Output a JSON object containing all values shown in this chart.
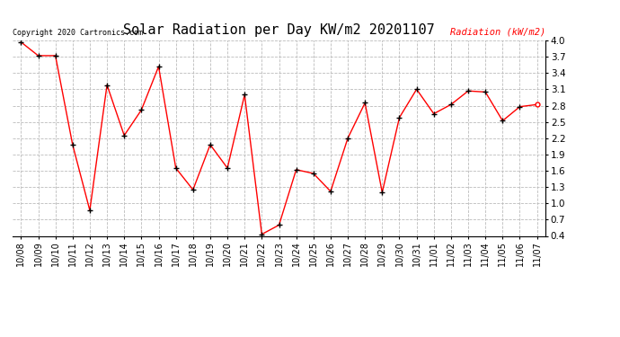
{
  "title": "Solar Radiation per Day KW/m2 20201107",
  "copyright": "Copyright 2020 Cartronics.com",
  "legend_label": "Radiation (kW/m2)",
  "dates": [
    "10/08",
    "10/09",
    "10/10",
    "10/11",
    "10/12",
    "10/13",
    "10/14",
    "10/15",
    "10/16",
    "10/17",
    "10/18",
    "10/19",
    "10/20",
    "10/21",
    "10/22",
    "10/23",
    "10/24",
    "10/25",
    "10/26",
    "10/27",
    "10/28",
    "10/29",
    "10/30",
    "10/31",
    "11/01",
    "11/02",
    "11/03",
    "11/04",
    "11/05",
    "11/06",
    "11/07"
  ],
  "values": [
    3.97,
    3.72,
    3.72,
    2.08,
    0.87,
    3.18,
    2.25,
    2.72,
    3.52,
    1.65,
    1.25,
    2.08,
    1.65,
    3.0,
    0.43,
    0.6,
    1.62,
    1.55,
    1.22,
    2.2,
    2.85,
    1.2,
    2.58,
    3.1,
    2.65,
    2.82,
    3.07,
    3.05,
    2.52,
    2.78,
    2.82
  ],
  "line_color": "#ff0000",
  "marker_color": "#000000",
  "background_color": "#ffffff",
  "grid_color": "#bbbbbb",
  "title_color": "#000000",
  "legend_color": "#ff0000",
  "copyright_color": "#000000",
  "ylim": [
    0.4,
    4.0
  ],
  "yticks": [
    0.4,
    0.7,
    1.0,
    1.3,
    1.6,
    1.9,
    2.2,
    2.5,
    2.8,
    3.1,
    3.4,
    3.7,
    4.0
  ],
  "last_marker_open": true
}
